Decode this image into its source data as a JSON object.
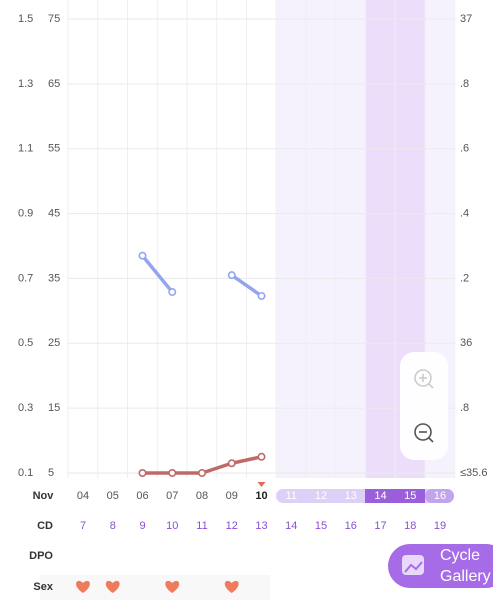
{
  "chart_data": {
    "type": "line",
    "categories": [
      "04",
      "05",
      "06",
      "07",
      "08",
      "09",
      "10",
      "11",
      "12",
      "13",
      "14",
      "15",
      "16"
    ],
    "month": "Nov",
    "today": "10",
    "ylim": [
      0.1,
      1.5
    ],
    "yticks": [
      0.1,
      0.3,
      0.5,
      0.7,
      0.9,
      1.1,
      1.3,
      1.5
    ],
    "y2lim": [
      5,
      75
    ],
    "y2ticks": [
      5,
      15,
      25,
      35,
      45,
      55,
      65,
      75
    ],
    "y3lim": [
      35.6,
      37
    ],
    "y3ticks": [
      {
        "value": 35.6,
        "label": "≤35.6"
      },
      {
        "value": 35.8,
        "label": ".8"
      },
      36,
      {
        "value": 36.2,
        "label": ".2"
      },
      {
        "value": 36.4,
        "label": ".4"
      },
      {
        "value": 36.6,
        "label": ".6"
      },
      {
        "value": 36.8,
        "label": ".8"
      },
      37
    ],
    "grid": true,
    "series": [
      {
        "color": "#93a5ef",
        "axis": "y2",
        "values": [
          null,
          null,
          38.5,
          32.9,
          null,
          35.5,
          32.3,
          null,
          null,
          null,
          null,
          null,
          null
        ]
      },
      {
        "color": "#c06a66",
        "values": [
          null,
          null,
          0.1,
          0.1,
          0.1,
          0.13,
          0.15,
          null,
          null,
          null,
          null,
          null,
          null
        ]
      }
    ],
    "rows": {
      "cd_label": "CD",
      "cd": [
        7,
        8,
        9,
        10,
        11,
        12,
        13,
        14,
        15,
        16,
        17,
        18,
        19
      ],
      "dpo_label": "DPO",
      "sex_label": "Sex",
      "sex": [
        true,
        true,
        false,
        true,
        false,
        true,
        false,
        false,
        false,
        false,
        false,
        false,
        false
      ]
    },
    "button": {
      "line1": "Cycle",
      "line2": "Gallery"
    }
  }
}
